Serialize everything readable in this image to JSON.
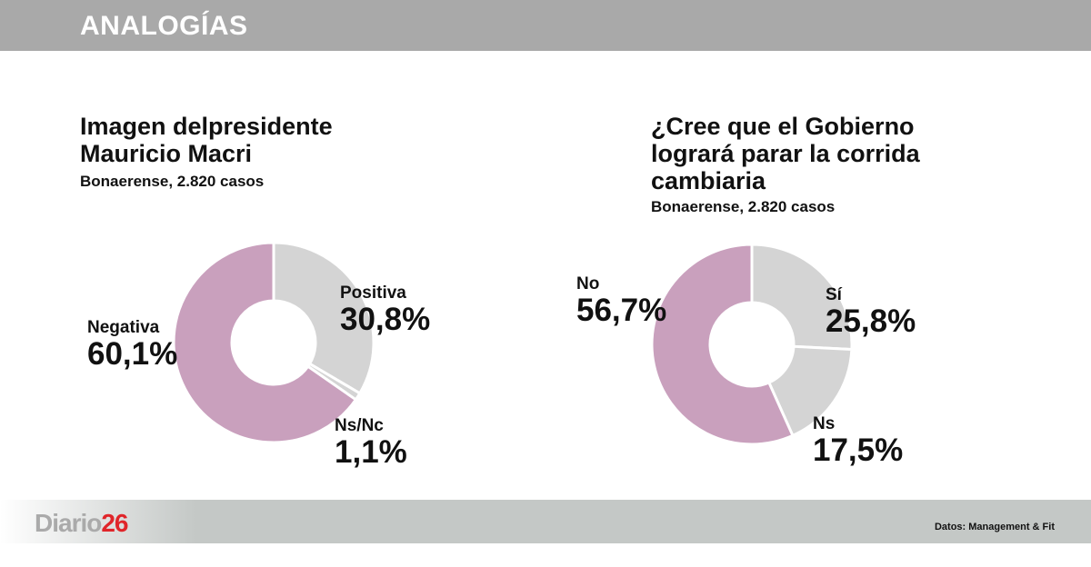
{
  "header": {
    "title": "ANALOGÍAS"
  },
  "chart_data": [
    {
      "type": "pie",
      "title": "Imagen delpresidente Mauricio Macri",
      "subtitle": "Bonaerense, 2.820 casos",
      "categories": [
        "Positiva",
        "Ns/Nc",
        "Negativa"
      ],
      "values": [
        30.8,
        1.1,
        60.1
      ],
      "labels": [
        "30,8%",
        "1,1%",
        "60,1%"
      ],
      "colors": [
        "#d4d4d4",
        "#d4d4d4",
        "#c9a0bd"
      ],
      "donut": true
    },
    {
      "type": "pie",
      "title": "¿Cree que el Gobierno logrará parar la corrida cambiaria",
      "subtitle": "Bonaerense, 2.820 casos",
      "categories": [
        "Sí",
        "Ns",
        "No"
      ],
      "values": [
        25.8,
        17.5,
        56.7
      ],
      "labels": [
        "25,8%",
        "17,5%",
        "56,7%"
      ],
      "colors": [
        "#d4d4d4",
        "#d4d4d4",
        "#c9a0bd"
      ],
      "donut": true
    }
  ],
  "footer": {
    "logo_text": "Diario",
    "logo_number": "26",
    "source": "Datos: Management & Fit"
  }
}
